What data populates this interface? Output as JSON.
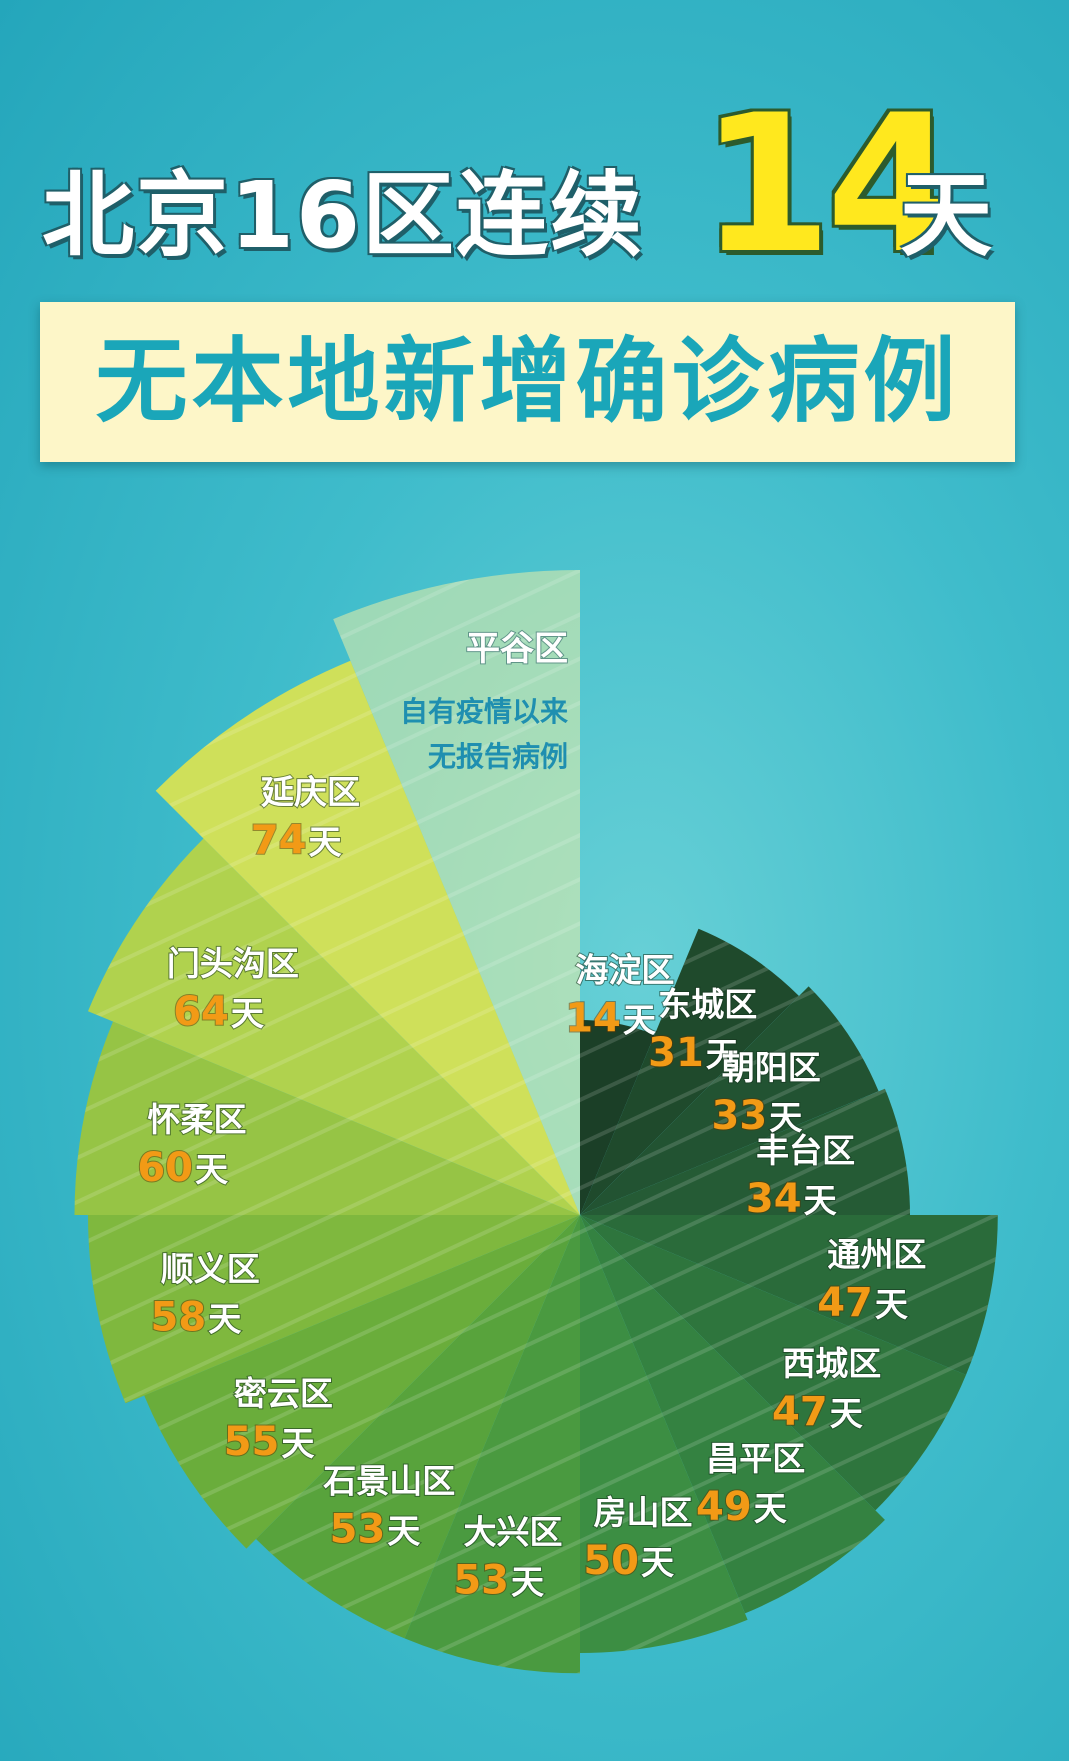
{
  "header": {
    "title_part1": "北京16区连续",
    "title_number": "14",
    "title_part2": "天",
    "subtitle": "无本地新增确诊病例"
  },
  "chart_data": {
    "type": "pie",
    "unit": "天",
    "slices": [
      {
        "label": "海淀区",
        "value": 14,
        "color": "#1b3f27"
      },
      {
        "label": "东城区",
        "value": 31,
        "color": "#1f4a2c"
      },
      {
        "label": "朝阳区",
        "value": 33,
        "color": "#225332"
      },
      {
        "label": "丰台区",
        "value": 34,
        "color": "#255b35"
      },
      {
        "label": "通州区",
        "value": 47,
        "color": "#2a6b3a"
      },
      {
        "label": "西城区",
        "value": 47,
        "color": "#2e753d"
      },
      {
        "label": "昌平区",
        "value": 49,
        "color": "#348241"
      },
      {
        "label": "房山区",
        "value": 50,
        "color": "#3c8e43"
      },
      {
        "label": "大兴区",
        "value": 53,
        "color": "#4a9a40"
      },
      {
        "label": "石景山区",
        "value": 53,
        "color": "#58a33c"
      },
      {
        "label": "密云区",
        "value": 55,
        "color": "#6aad3b"
      },
      {
        "label": "顺义区",
        "value": 58,
        "color": "#7fb83e"
      },
      {
        "label": "怀柔区",
        "value": 60,
        "color": "#96c445"
      },
      {
        "label": "门头沟区",
        "value": 64,
        "color": "#b0d24e"
      },
      {
        "label": "延庆区",
        "value": 74,
        "color": "#cfe05a"
      }
    ],
    "special_slice": {
      "label": "平谷区",
      "note_line1": "自有疫情以来",
      "note_line2": "无报告病例",
      "color": "#e9efa6"
    }
  }
}
